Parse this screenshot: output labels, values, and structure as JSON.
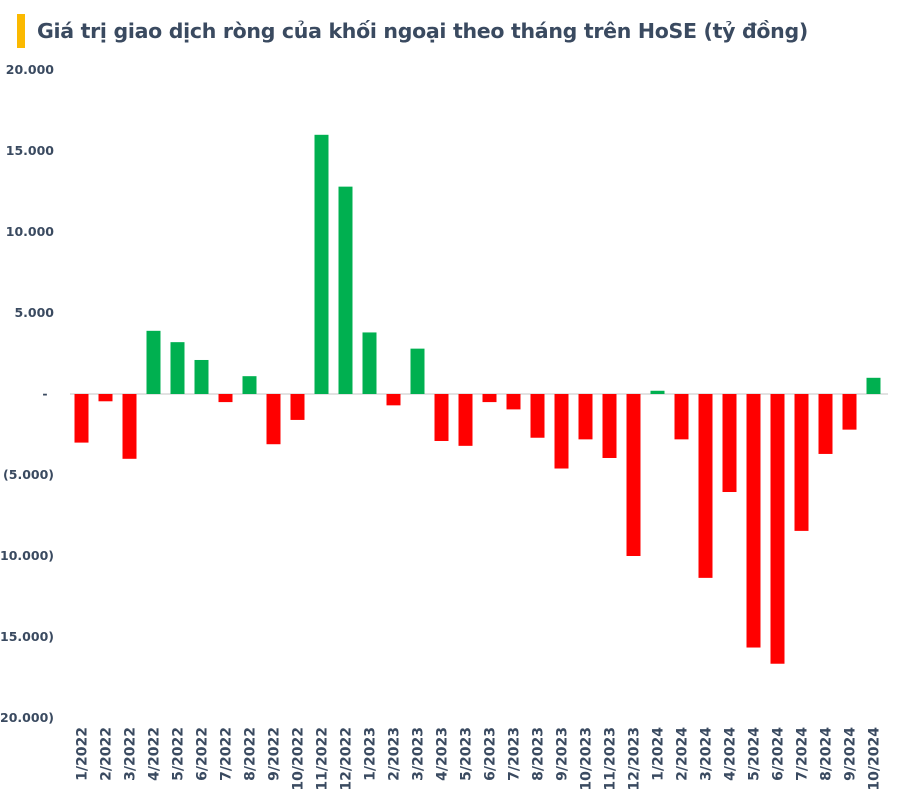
{
  "header": {
    "title": "Giá trị giao dịch ròng của khối ngoại theo tháng trên HoSE (tỷ đồng)"
  },
  "colors": {
    "accent": "#fbb900",
    "positive": "#00b050",
    "negative": "#ff0000",
    "zero_line": "#d9d9d9",
    "text": "#3a4a60"
  },
  "chart_data": {
    "type": "bar",
    "title": "Giá trị giao dịch ròng của khối ngoại theo tháng trên HoSE (tỷ đồng)",
    "xlabel": "",
    "ylabel": "",
    "ylim": [
      -20000,
      20000
    ],
    "yticks": [
      20000,
      15000,
      10000,
      5000,
      0,
      -5000,
      -10000,
      -15000,
      -20000
    ],
    "ytick_labels": [
      "20.000",
      "15.000",
      "10.000",
      "5.000",
      "-",
      "(5.000)",
      "(10.000)",
      "(15.000)",
      "(20.000)"
    ],
    "grid": false,
    "legend": "none",
    "categories": [
      "1/2022",
      "2/2022",
      "3/2022",
      "4/2022",
      "5/2022",
      "6/2022",
      "7/2022",
      "8/2022",
      "9/2022",
      "10/2022",
      "11/2022",
      "12/2022",
      "1/2023",
      "2/2023",
      "3/2023",
      "4/2023",
      "5/2023",
      "6/2023",
      "7/2023",
      "8/2023",
      "9/2023",
      "10/2023",
      "11/2023",
      "12/2023",
      "1/2024",
      "2/2024",
      "3/2024",
      "4/2024",
      "5/2024",
      "6/2024",
      "7/2024",
      "8/2024",
      "9/2024",
      "10/2024"
    ],
    "values": [
      -3000,
      -450,
      -4000,
      3900,
      3200,
      2100,
      -500,
      1100,
      -3100,
      -1600,
      16000,
      12800,
      3800,
      -700,
      2800,
      -2900,
      -3200,
      -500,
      -950,
      -2700,
      -4600,
      -2800,
      -3950,
      -10000,
      200,
      -2800,
      -11350,
      -6050,
      -15650,
      -16650,
      -8450,
      -3700,
      -2200,
      1000
    ]
  }
}
